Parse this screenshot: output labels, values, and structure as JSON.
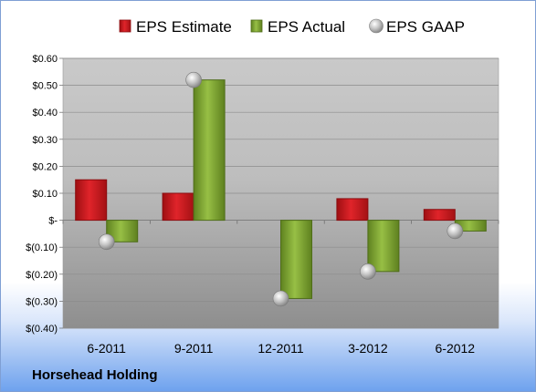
{
  "company": "Horsehead Holding",
  "chart_data": {
    "type": "bar",
    "categories": [
      "6-2011",
      "9-2011",
      "12-2011",
      "3-2012",
      "6-2012"
    ],
    "series": [
      {
        "name": "EPS Estimate",
        "type": "bar",
        "color": "#c8181e",
        "values": [
          0.15,
          0.1,
          null,
          0.08,
          0.04
        ]
      },
      {
        "name": "EPS Actual",
        "type": "bar",
        "color": "#7fa52d",
        "values": [
          -0.08,
          0.52,
          -0.29,
          -0.19,
          -0.04
        ]
      },
      {
        "name": "EPS GAAP",
        "type": "scatter",
        "color": "#b8b8b8",
        "values": [
          -0.08,
          0.52,
          -0.29,
          -0.19,
          -0.04
        ]
      }
    ],
    "ylim": [
      -0.4,
      0.6
    ],
    "yticks": [
      0.6,
      0.5,
      0.4,
      0.3,
      0.2,
      0.1,
      0,
      -0.1,
      -0.2,
      -0.3,
      -0.4
    ],
    "ytick_labels": [
      "$0.60",
      "$0.50",
      "$0.40",
      "$0.30",
      "$0.20",
      "$0.10",
      "$-",
      "$(0.10)",
      "$(0.20)",
      "$(0.30)",
      "$(0.40)"
    ],
    "grid": true,
    "legend": "top"
  }
}
